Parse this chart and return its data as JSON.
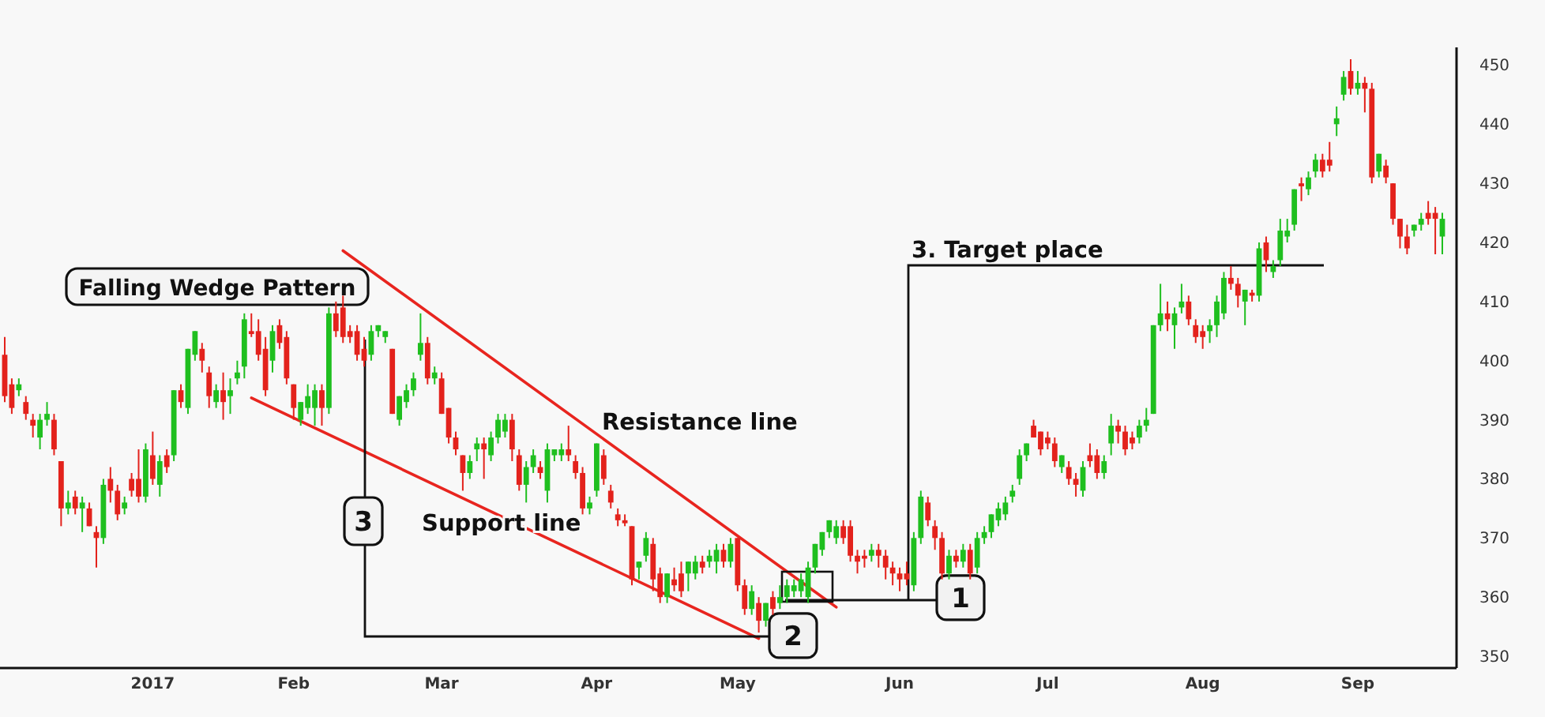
{
  "chart_data": {
    "type": "candlestick",
    "title": "Falling Wedge Pattern",
    "categories": [
      null,
      null,
      null,
      null,
      null,
      null,
      null,
      null,
      null,
      null,
      null,
      null,
      null,
      null,
      null,
      null,
      null,
      null,
      null,
      null,
      null,
      "2017",
      null,
      null,
      null,
      null,
      null,
      null,
      null,
      null,
      null,
      null,
      null,
      null,
      null,
      null,
      null,
      null,
      null,
      null,
      null,
      "Feb",
      null,
      null,
      null,
      null,
      null,
      null,
      null,
      null,
      null,
      null,
      null,
      null,
      null,
      null,
      null,
      null,
      null,
      null,
      null,
      null,
      "Mar",
      null,
      null,
      null,
      null,
      null,
      null,
      null,
      null,
      null,
      null,
      null,
      null,
      null,
      null,
      null,
      null,
      null,
      null,
      null,
      null,
      null,
      "Apr",
      null,
      null,
      null,
      null,
      null,
      null,
      null,
      null,
      null,
      null,
      null,
      null,
      null,
      null,
      null,
      null,
      null,
      null,
      null,
      "May",
      null,
      null,
      null,
      null,
      null,
      null,
      null,
      null,
      null,
      null,
      null,
      null,
      null,
      null,
      null,
      null,
      null,
      null,
      null,
      null,
      null,
      null,
      "Jun",
      null,
      null,
      null,
      null,
      null,
      null,
      null,
      null,
      null,
      null,
      null,
      null,
      null,
      null,
      null,
      null,
      null,
      null,
      null,
      null,
      "Jul",
      null,
      null,
      null,
      null,
      null,
      null,
      null,
      null,
      null,
      null,
      null,
      null,
      null,
      null,
      null,
      null,
      null,
      null,
      null,
      null,
      null,
      "Aug",
      null,
      null,
      null,
      null,
      null,
      null,
      null,
      null,
      null,
      null,
      null,
      null,
      null,
      null,
      null,
      null,
      null,
      null,
      null,
      null,
      null,
      "Sep",
      null,
      null,
      null,
      null,
      null,
      null,
      null,
      null,
      null,
      null,
      null,
      null
    ],
    "ohlc": [
      [
        401,
        404,
        393,
        394
      ],
      [
        396,
        397,
        391,
        392
      ],
      [
        395,
        397,
        394,
        396
      ],
      [
        393,
        394,
        390,
        391
      ],
      [
        390,
        391,
        387,
        389
      ],
      [
        387,
        391,
        385,
        390
      ],
      [
        390,
        393,
        389,
        391
      ],
      [
        390,
        391,
        384,
        385
      ],
      [
        383,
        383,
        372,
        375
      ],
      [
        375,
        378,
        374,
        376
      ],
      [
        377,
        378,
        374,
        375
      ],
      [
        375,
        377,
        371,
        376
      ],
      [
        375,
        376,
        372,
        372
      ],
      [
        371,
        372,
        365,
        370
      ],
      [
        370,
        380,
        369,
        379
      ],
      [
        380,
        382,
        376,
        378
      ],
      [
        378,
        379,
        373,
        374
      ],
      [
        375,
        377,
        374,
        376
      ],
      [
        380,
        381,
        377,
        378
      ],
      [
        380,
        385,
        376,
        377
      ],
      [
        377,
        386,
        376,
        385
      ],
      [
        384,
        388,
        379,
        380
      ],
      [
        379,
        384,
        377,
        383
      ],
      [
        384,
        385,
        381,
        382
      ],
      [
        384,
        395,
        383,
        395
      ],
      [
        395,
        396,
        392,
        393
      ],
      [
        392,
        402,
        391,
        402
      ],
      [
        401,
        405,
        400,
        405
      ],
      [
        402,
        403,
        398,
        400
      ],
      [
        398,
        399,
        392,
        394
      ],
      [
        393,
        396,
        392,
        395
      ],
      [
        395,
        398,
        390,
        393
      ],
      [
        394,
        397,
        391,
        395
      ],
      [
        397,
        400,
        396,
        398
      ],
      [
        399,
        408,
        397,
        407
      ],
      [
        405,
        408,
        404,
        404.5
      ],
      [
        405,
        407,
        400,
        401
      ],
      [
        402,
        404,
        394,
        395
      ],
      [
        400,
        406,
        398,
        405
      ],
      [
        406,
        407,
        402,
        403
      ],
      [
        404,
        405,
        396,
        397
      ],
      [
        396,
        396,
        390,
        392
      ],
      [
        390,
        393,
        389,
        393
      ],
      [
        392,
        396,
        391,
        394
      ],
      [
        392,
        396,
        389,
        395
      ],
      [
        395,
        396,
        389,
        392
      ],
      [
        392,
        409,
        391,
        408
      ],
      [
        408,
        410,
        404,
        405
      ],
      [
        409,
        411,
        403,
        404
      ],
      [
        405,
        406,
        403,
        404
      ],
      [
        405,
        406,
        400,
        401
      ],
      [
        402,
        404,
        399,
        400
      ],
      [
        401,
        406,
        400,
        405
      ],
      [
        405,
        406,
        404,
        406
      ],
      [
        404,
        405,
        403,
        405
      ],
      [
        402,
        402,
        391,
        391
      ],
      [
        390,
        394,
        389,
        394
      ],
      [
        393,
        396,
        392,
        395
      ],
      [
        395,
        398,
        394,
        397
      ],
      [
        401,
        408,
        400,
        403
      ],
      [
        403,
        404,
        396,
        397
      ],
      [
        397,
        399,
        396,
        398
      ],
      [
        397,
        398,
        391,
        391
      ],
      [
        392,
        392,
        386,
        387
      ],
      [
        387,
        388,
        384,
        385
      ],
      [
        384,
        384,
        378,
        381
      ],
      [
        381,
        384,
        380,
        383
      ],
      [
        385,
        387,
        383,
        386
      ],
      [
        386,
        387,
        380,
        385
      ],
      [
        384,
        388,
        383,
        387
      ],
      [
        387,
        391,
        386,
        390
      ],
      [
        388,
        391,
        387,
        390
      ],
      [
        390,
        391,
        383,
        385
      ],
      [
        384,
        385,
        378,
        379
      ],
      [
        379,
        383,
        376,
        382
      ],
      [
        382,
        385,
        381,
        384
      ],
      [
        382,
        383,
        380,
        381
      ],
      [
        378,
        386,
        376,
        385
      ],
      [
        384,
        385,
        383,
        385
      ],
      [
        384,
        386,
        383,
        385
      ],
      [
        385,
        389,
        383,
        384
      ],
      [
        383,
        384,
        380,
        381
      ],
      [
        381,
        382,
        374,
        375
      ],
      [
        375,
        377,
        374,
        376
      ],
      [
        378,
        386,
        377,
        386
      ],
      [
        384,
        385,
        379,
        380
      ],
      [
        378,
        379,
        375,
        376
      ],
      [
        374,
        375,
        372,
        373
      ],
      [
        373,
        374,
        372,
        372.5
      ],
      [
        372,
        372,
        362,
        363
      ],
      [
        365,
        366,
        363,
        366
      ],
      [
        367,
        371,
        366,
        370
      ],
      [
        369,
        370,
        361,
        363
      ],
      [
        364,
        365,
        359,
        360
      ],
      [
        360,
        364,
        359,
        364
      ],
      [
        363,
        365,
        361,
        362
      ],
      [
        364,
        366,
        360,
        361
      ],
      [
        364,
        366,
        361,
        366
      ],
      [
        364,
        367,
        363,
        366
      ],
      [
        366,
        367,
        364,
        365
      ],
      [
        366,
        368,
        365,
        367
      ],
      [
        366,
        369,
        364,
        368
      ],
      [
        368,
        369,
        365,
        366
      ],
      [
        366,
        370,
        365,
        369
      ],
      [
        370,
        370,
        361,
        362
      ],
      [
        362,
        363,
        357,
        358
      ],
      [
        358,
        362,
        357,
        361
      ],
      [
        359,
        360,
        354,
        356
      ],
      [
        356,
        359,
        355,
        359
      ],
      [
        360,
        361,
        357,
        358
      ],
      [
        359,
        362,
        358,
        360
      ],
      [
        360,
        363,
        359,
        362
      ],
      [
        361,
        363,
        360,
        362
      ],
      [
        361,
        364,
        360,
        363
      ],
      [
        360,
        366,
        359,
        365
      ],
      [
        365,
        369,
        364,
        369
      ],
      [
        368,
        371,
        367,
        371
      ],
      [
        371,
        373,
        370,
        373
      ],
      [
        370,
        373,
        369,
        372
      ],
      [
        372,
        373,
        369,
        370
      ],
      [
        372,
        373,
        366,
        367
      ],
      [
        367,
        368,
        364,
        366
      ],
      [
        367,
        368,
        365,
        366.5
      ],
      [
        367,
        369,
        366,
        368
      ],
      [
        368,
        369,
        365,
        367
      ],
      [
        367,
        368,
        363,
        365
      ],
      [
        365,
        366,
        362,
        364
      ],
      [
        364,
        365,
        361,
        363
      ],
      [
        364,
        366,
        362,
        363
      ],
      [
        362,
        371,
        361,
        370
      ],
      [
        370,
        378,
        369,
        377
      ],
      [
        376,
        377,
        372,
        373
      ],
      [
        372,
        373,
        368,
        370
      ],
      [
        370,
        371,
        363,
        364
      ],
      [
        364,
        368,
        363,
        367
      ],
      [
        367,
        368,
        365,
        366
      ],
      [
        366,
        369,
        365,
        368
      ],
      [
        368,
        369,
        363,
        364
      ],
      [
        365,
        371,
        364,
        370
      ],
      [
        370,
        372,
        369,
        371
      ],
      [
        371,
        374,
        370,
        374
      ],
      [
        373,
        376,
        372,
        375
      ],
      [
        374,
        377,
        373,
        376
      ],
      [
        377,
        379,
        376,
        378
      ],
      [
        380,
        385,
        379,
        384
      ],
      [
        384,
        386,
        383,
        386
      ],
      [
        389,
        390,
        387,
        387
      ],
      [
        388,
        388,
        384,
        385
      ],
      [
        387,
        388,
        385,
        386
      ],
      [
        386,
        387,
        382,
        383
      ],
      [
        382,
        384,
        381,
        384
      ],
      [
        382,
        383,
        379,
        380
      ],
      [
        380,
        381,
        377,
        379
      ],
      [
        378,
        383,
        377,
        382
      ],
      [
        384,
        386,
        382,
        383
      ],
      [
        384,
        385,
        380,
        381
      ],
      [
        381,
        384,
        380,
        383
      ],
      [
        386,
        391,
        384,
        389
      ],
      [
        389,
        390,
        386,
        388
      ],
      [
        388,
        389,
        384,
        385
      ],
      [
        387,
        388,
        385,
        386
      ],
      [
        387,
        390,
        386,
        389
      ],
      [
        389,
        392,
        388,
        390
      ],
      [
        391,
        406,
        391,
        406
      ],
      [
        406,
        413,
        405,
        408
      ],
      [
        408,
        410,
        405,
        407
      ],
      [
        406,
        409,
        402,
        408
      ],
      [
        409,
        413,
        408,
        410
      ],
      [
        410,
        411,
        406,
        407
      ],
      [
        406,
        407,
        403,
        404
      ],
      [
        405,
        406,
        402,
        404
      ],
      [
        405,
        407,
        403,
        406
      ],
      [
        406,
        411,
        404,
        410
      ],
      [
        408,
        415,
        407,
        414
      ],
      [
        414,
        416,
        412,
        413
      ],
      [
        413,
        414,
        409,
        411
      ],
      [
        410,
        412,
        406,
        412
      ],
      [
        411.5,
        412,
        410,
        411
      ],
      [
        411,
        420,
        410,
        419
      ],
      [
        420,
        421,
        415,
        417
      ],
      [
        415,
        417,
        414,
        416
      ],
      [
        417,
        424,
        416,
        422
      ],
      [
        421,
        424,
        420,
        422
      ],
      [
        423,
        429,
        422,
        429
      ],
      [
        430,
        431,
        427,
        429.5
      ],
      [
        429,
        432,
        428,
        431
      ],
      [
        432,
        435,
        431,
        434
      ],
      [
        434,
        435,
        431,
        432
      ],
      [
        434,
        437,
        432,
        433
      ],
      [
        440,
        443,
        438,
        441
      ],
      [
        445,
        449,
        444,
        448
      ],
      [
        449,
        451,
        445,
        446
      ],
      [
        446,
        449,
        445,
        447
      ],
      [
        447,
        448,
        442,
        446
      ],
      [
        446,
        447,
        430,
        431
      ],
      [
        432,
        435,
        431,
        435
      ],
      [
        433,
        434,
        430,
        431
      ],
      [
        430,
        430,
        423,
        424
      ],
      [
        424,
        424,
        419,
        421
      ],
      [
        421,
        423,
        418,
        419
      ],
      [
        422,
        423,
        421,
        423
      ],
      [
        423,
        425,
        422,
        424
      ],
      [
        425,
        427,
        423,
        424
      ],
      [
        425,
        426,
        418,
        424
      ],
      [
        421,
        425,
        418,
        424
      ]
    ],
    "series": [
      {
        "name": "Resistance line",
        "type": "line",
        "color": "#e8251f",
        "values": [
          null,
          null,
          null,
          null,
          null,
          null,
          null,
          null,
          null,
          null,
          null,
          null,
          null,
          null,
          null,
          null,
          null,
          null,
          null,
          null,
          null,
          null,
          null,
          null,
          null,
          null,
          null,
          null,
          null,
          null,
          null,
          null,
          null,
          null,
          null,
          null,
          null,
          null,
          null,
          null,
          null,
          null,
          null,
          null,
          null,
          null,
          null,
          null,
          418.6,
          null,
          null,
          null,
          null,
          null,
          null,
          null,
          null,
          null,
          null,
          null,
          null,
          null,
          null,
          null,
          null,
          null,
          null,
          null,
          null,
          null,
          null,
          null,
          null,
          null,
          null,
          null,
          null,
          null,
          null,
          null,
          null,
          null,
          null,
          null,
          null,
          null,
          null,
          null,
          null,
          null,
          null,
          null,
          null,
          null,
          null,
          null,
          null,
          null,
          null,
          null,
          null,
          null,
          null,
          null,
          null,
          null,
          null,
          null,
          null,
          null,
          null,
          null,
          null,
          null,
          null,
          null,
          null,
          null,
          358.3,
          null,
          null,
          null,
          null,
          null,
          null,
          null,
          null,
          null,
          null,
          null,
          null,
          null,
          null,
          null,
          null,
          null,
          null,
          null,
          null,
          null,
          null,
          null,
          null,
          null,
          null,
          null,
          null,
          null,
          null,
          null,
          null,
          null,
          null,
          null,
          null,
          null,
          null,
          null,
          null,
          null,
          null,
          null,
          null,
          null,
          null,
          null,
          null,
          null,
          null,
          null,
          null,
          null,
          null,
          null,
          null,
          null,
          null,
          null,
          null,
          null,
          null,
          null,
          null,
          null,
          null,
          null,
          null,
          null,
          null,
          null,
          null,
          null,
          null,
          null,
          null,
          null,
          null,
          null,
          null,
          null,
          null,
          null,
          null,
          null,
          null
        ]
      },
      {
        "name": "Support line",
        "type": "line",
        "color": "#e8251f",
        "values": [
          null,
          null,
          null,
          null,
          null,
          null,
          null,
          null,
          null,
          null,
          null,
          null,
          null,
          null,
          null,
          null,
          null,
          null,
          null,
          null,
          null,
          null,
          null,
          null,
          null,
          null,
          null,
          null,
          null,
          null,
          null,
          null,
          null,
          null,
          null,
          393.7,
          null,
          null,
          null,
          null,
          null,
          null,
          null,
          null,
          null,
          null,
          null,
          null,
          null,
          null,
          null,
          null,
          null,
          null,
          null,
          null,
          null,
          null,
          null,
          null,
          null,
          null,
          null,
          null,
          null,
          null,
          null,
          null,
          null,
          null,
          null,
          null,
          null,
          null,
          null,
          null,
          null,
          null,
          null,
          null,
          null,
          null,
          null,
          null,
          null,
          null,
          null,
          null,
          null,
          null,
          null,
          null,
          null,
          null,
          null,
          null,
          null,
          null,
          null,
          null,
          null,
          null,
          null,
          null,
          null,
          null,
          null,
          353,
          null,
          null,
          null,
          null,
          null,
          null,
          null,
          null,
          null,
          null,
          null,
          null,
          null,
          null,
          null,
          null,
          null,
          null,
          null,
          null,
          null,
          null,
          null,
          null,
          null,
          null,
          null,
          null,
          null,
          null,
          null,
          null,
          null,
          null,
          null,
          null,
          null,
          null,
          null,
          null,
          null,
          null,
          null,
          null,
          null,
          null,
          null,
          null,
          null,
          null,
          null,
          null,
          null,
          null,
          null,
          null,
          null,
          null,
          null,
          null,
          null,
          null,
          null,
          null,
          null,
          null,
          null,
          null,
          null,
          null,
          null,
          null,
          null,
          null,
          null,
          null,
          null,
          null,
          null,
          null,
          null,
          null,
          null,
          null,
          null,
          null,
          null,
          null,
          null,
          null,
          null,
          null,
          null,
          null,
          null,
          null,
          null
        ]
      }
    ],
    "annotations": [
      "3",
      {
        "text": "2",
        "y": 353.5
      },
      {
        "text": "1",
        "y": 359.9
      },
      "3. Target place"
    ],
    "ylim": [
      348,
      453
    ],
    "yticks": [
      350,
      360,
      370,
      380,
      390,
      400,
      410,
      420,
      430,
      440,
      450
    ]
  }
}
